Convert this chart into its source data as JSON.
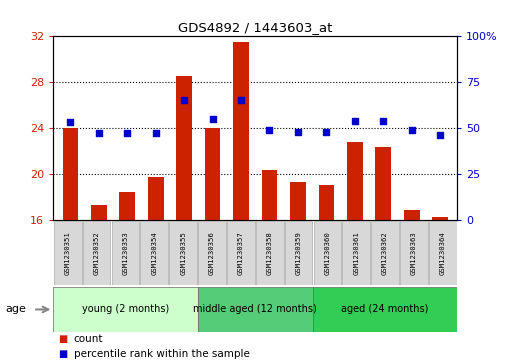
{
  "title": "GDS4892 / 1443603_at",
  "samples": [
    "GSM1230351",
    "GSM1230352",
    "GSM1230353",
    "GSM1230354",
    "GSM1230355",
    "GSM1230356",
    "GSM1230357",
    "GSM1230358",
    "GSM1230359",
    "GSM1230360",
    "GSM1230361",
    "GSM1230362",
    "GSM1230363",
    "GSM1230364"
  ],
  "counts": [
    24.0,
    17.3,
    18.4,
    19.7,
    28.5,
    24.0,
    31.5,
    20.3,
    19.3,
    19.0,
    22.8,
    22.3,
    16.8,
    16.2
  ],
  "percentiles": [
    53,
    47,
    47,
    47,
    65,
    55,
    65,
    49,
    48,
    48,
    54,
    54,
    49,
    46
  ],
  "ylim_left": [
    16,
    32
  ],
  "ylim_right": [
    0,
    100
  ],
  "yticks_left": [
    16,
    20,
    24,
    28,
    32
  ],
  "yticks_right": [
    0,
    25,
    50,
    75,
    100
  ],
  "bar_color": "#cc2200",
  "dot_color": "#0000cc",
  "bg_color": "#ffffff",
  "age_groups": [
    {
      "label": "young (2 months)",
      "start": 0,
      "end": 4,
      "color": "#ccffcc"
    },
    {
      "label": "middle aged (12 months)",
      "start": 5,
      "end": 8,
      "color": "#55cc77"
    },
    {
      "label": "aged (24 months)",
      "start": 9,
      "end": 13,
      "color": "#33cc55"
    }
  ],
  "xlabel_age": "age",
  "legend_count": "count",
  "legend_percentile": "percentile rank within the sample",
  "label_box_color": "#d8d8d8",
  "label_box_edge": "#aaaaaa"
}
